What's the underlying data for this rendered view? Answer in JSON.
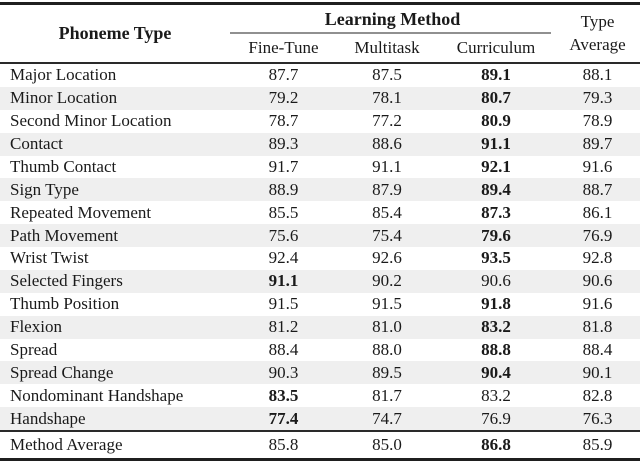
{
  "header": {
    "phoneme_type": "Phoneme Type",
    "learning_method": "Learning Method",
    "methods": [
      "Fine-Tune",
      "Multitask",
      "Curriculum"
    ],
    "type_average": [
      "Type",
      "Average"
    ]
  },
  "rows": [
    {
      "label": "Major Location",
      "values": [
        "87.7",
        "87.5",
        "89.1",
        "88.1"
      ],
      "bold_index": 2
    },
    {
      "label": "Minor Location",
      "values": [
        "79.2",
        "78.1",
        "80.7",
        "79.3"
      ],
      "bold_index": 2
    },
    {
      "label": "Second Minor Location",
      "values": [
        "78.7",
        "77.2",
        "80.9",
        "78.9"
      ],
      "bold_index": 2
    },
    {
      "label": "Contact",
      "values": [
        "89.3",
        "88.6",
        "91.1",
        "89.7"
      ],
      "bold_index": 2
    },
    {
      "label": "Thumb Contact",
      "values": [
        "91.7",
        "91.1",
        "92.1",
        "91.6"
      ],
      "bold_index": 2
    },
    {
      "label": "Sign Type",
      "values": [
        "88.9",
        "87.9",
        "89.4",
        "88.7"
      ],
      "bold_index": 2
    },
    {
      "label": "Repeated Movement",
      "values": [
        "85.5",
        "85.4",
        "87.3",
        "86.1"
      ],
      "bold_index": 2
    },
    {
      "label": "Path Movement",
      "values": [
        "75.6",
        "75.4",
        "79.6",
        "76.9"
      ],
      "bold_index": 2
    },
    {
      "label": "Wrist Twist",
      "values": [
        "92.4",
        "92.6",
        "93.5",
        "92.8"
      ],
      "bold_index": 2
    },
    {
      "label": "Selected Fingers",
      "values": [
        "91.1",
        "90.2",
        "90.6",
        "90.6"
      ],
      "bold_index": 0
    },
    {
      "label": "Thumb Position",
      "values": [
        "91.5",
        "91.5",
        "91.8",
        "91.6"
      ],
      "bold_index": 2
    },
    {
      "label": "Flexion",
      "values": [
        "81.2",
        "81.0",
        "83.2",
        "81.8"
      ],
      "bold_index": 2
    },
    {
      "label": "Spread",
      "values": [
        "88.4",
        "88.0",
        "88.8",
        "88.4"
      ],
      "bold_index": 2
    },
    {
      "label": "Spread Change",
      "values": [
        "90.3",
        "89.5",
        "90.4",
        "90.1"
      ],
      "bold_index": 2
    },
    {
      "label": "Nondominant Handshape",
      "values": [
        "83.5",
        "81.7",
        "83.2",
        "82.8"
      ],
      "bold_index": 0
    },
    {
      "label": "Handshape",
      "values": [
        "77.4",
        "74.7",
        "76.9",
        "76.3"
      ],
      "bold_index": 0
    }
  ],
  "footer": {
    "label": "Method Average",
    "values": [
      "85.8",
      "85.0",
      "86.8",
      "85.9"
    ],
    "bold_index": 2
  },
  "colors": {
    "stripe": "#efefef",
    "rule_dark": "#1f1f1f",
    "cmidrule_gray": "#909090",
    "text": "#1a1a1a"
  },
  "chart_data": {
    "type": "table",
    "title": "Phoneme Type accuracy by Learning Method",
    "columns": [
      "Phoneme Type",
      "Fine-Tune",
      "Multitask",
      "Curriculum",
      "Type Average"
    ],
    "rows": [
      [
        "Major Location",
        87.7,
        87.5,
        89.1,
        88.1
      ],
      [
        "Minor Location",
        79.2,
        78.1,
        80.7,
        79.3
      ],
      [
        "Second Minor Location",
        78.7,
        77.2,
        80.9,
        78.9
      ],
      [
        "Contact",
        89.3,
        88.6,
        91.1,
        89.7
      ],
      [
        "Thumb Contact",
        91.7,
        91.1,
        92.1,
        91.6
      ],
      [
        "Sign Type",
        88.9,
        87.9,
        89.4,
        88.7
      ],
      [
        "Repeated Movement",
        85.5,
        85.4,
        87.3,
        86.1
      ],
      [
        "Path Movement",
        75.6,
        75.4,
        79.6,
        76.9
      ],
      [
        "Wrist Twist",
        92.4,
        92.6,
        93.5,
        92.8
      ],
      [
        "Selected Fingers",
        91.1,
        90.2,
        90.6,
        90.6
      ],
      [
        "Thumb Position",
        91.5,
        91.5,
        91.8,
        91.6
      ],
      [
        "Flexion",
        81.2,
        81.0,
        83.2,
        81.8
      ],
      [
        "Spread",
        88.4,
        88.0,
        88.8,
        88.4
      ],
      [
        "Spread Change",
        90.3,
        89.5,
        90.4,
        90.1
      ],
      [
        "Nondominant Handshape",
        83.5,
        81.7,
        83.2,
        82.8
      ],
      [
        "Handshape",
        77.4,
        74.7,
        76.9,
        76.3
      ],
      [
        "Method Average",
        85.8,
        85.0,
        86.8,
        85.9
      ]
    ]
  }
}
